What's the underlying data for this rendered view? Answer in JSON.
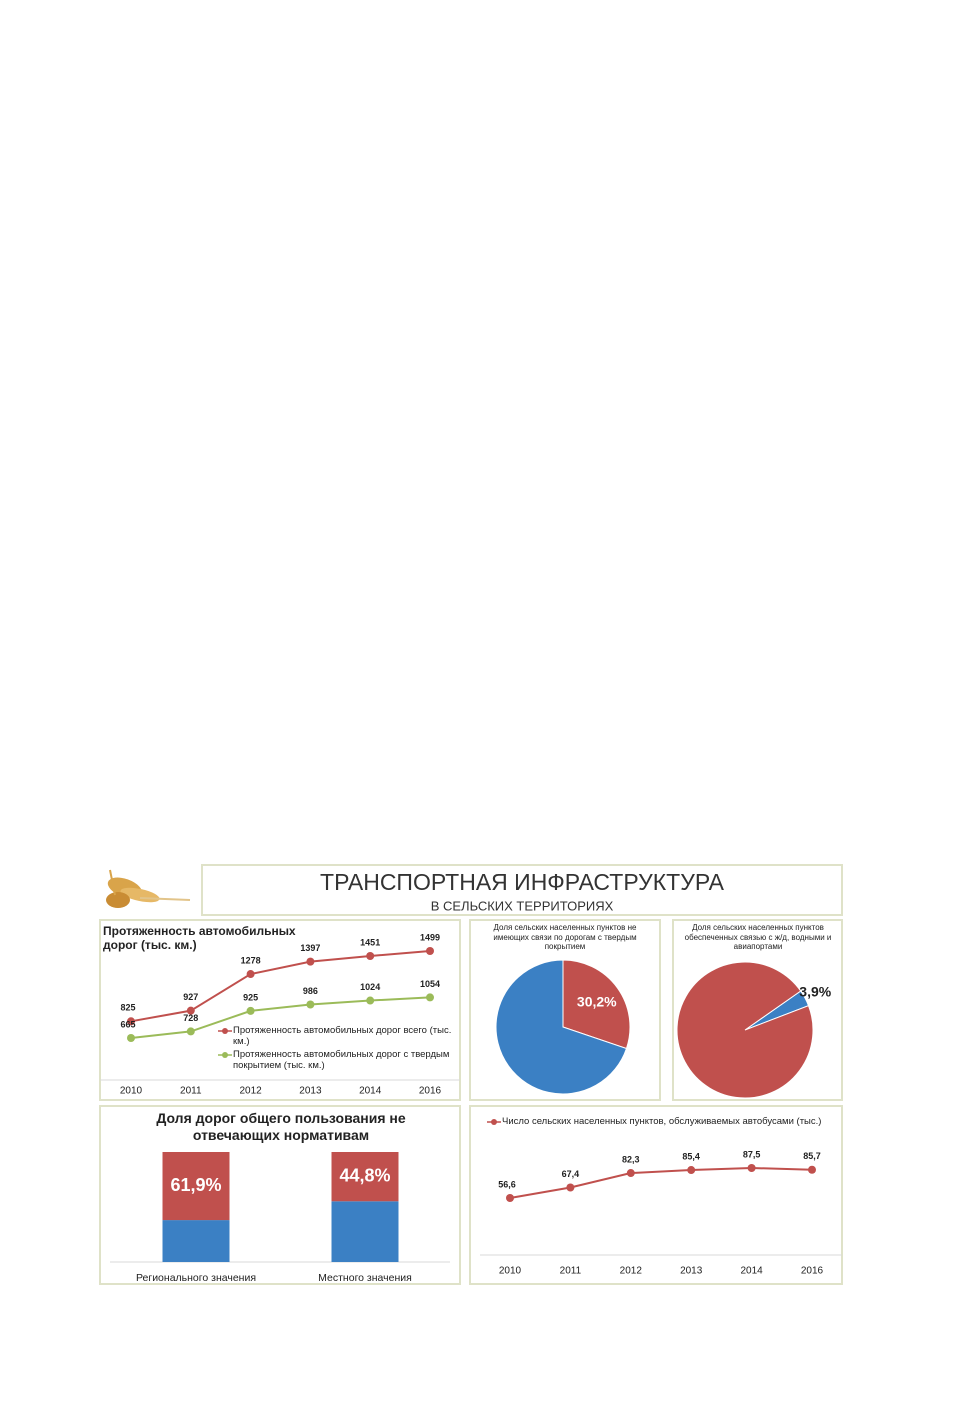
{
  "header": {
    "title": "ТРАНСПОРТНАЯ ИНФРАСТРУКТУРА",
    "subtitle": "В СЕЛЬСКИХ ТЕРРИТОРИЯХ"
  },
  "chart_data": [
    {
      "type": "line",
      "title": "Протяженность автомобильных дорог (тыс. км.)",
      "categories": [
        "2010",
        "2011",
        "2012",
        "2013",
        "2014",
        "2016"
      ],
      "series": [
        {
          "name": "Протяженность автомобильных дорог всего (тыс. км.)",
          "color": "#c0504d",
          "values": [
            825,
            927,
            1278,
            1397,
            1451,
            1499
          ]
        },
        {
          "name": "Протяженность автомобильных дорог с твердым покрытием (тыс. км.)",
          "color": "#9bbb59",
          "values": [
            665,
            728,
            925,
            986,
            1024,
            1054
          ]
        }
      ]
    },
    {
      "type": "pie",
      "title": "Доля сельских населенных пунктов не имеющих связи по дорогам с твердым покрытием",
      "values": [
        30.2,
        69.8
      ],
      "value_labels": [
        "30,2%",
        null
      ],
      "colors": [
        "#c0504d",
        "#3b80c4"
      ]
    },
    {
      "type": "pie",
      "title": "Доля сельских населенных пунктов обеспеченных связью с ж/д, водными и авиапортами",
      "values": [
        3.9,
        96.1
      ],
      "value_labels": [
        "3,9%",
        null
      ],
      "colors": [
        "#3b80c4",
        "#c0504d"
      ]
    },
    {
      "type": "bar",
      "stacked": true,
      "title": "Доля дорог общего пользования не отвечающих нормативам",
      "categories": [
        "Регионального значения",
        "Местного значения"
      ],
      "series": [
        {
          "color": "#3b80c4",
          "values": [
            38.1,
            55.2
          ]
        },
        {
          "color": "#c0504d",
          "values": [
            61.9,
            44.8
          ],
          "value_labels": [
            "61,9%",
            "44,8%"
          ]
        }
      ]
    },
    {
      "type": "line",
      "categories": [
        "2010",
        "2011",
        "2012",
        "2013",
        "2014",
        "2016"
      ],
      "series": [
        {
          "name": "Число сельских населенных пунктов, обслуживаемых автобусами (тыс.)",
          "color": "#c0504d",
          "values": [
            56.6,
            67.4,
            82.3,
            85.4,
            87.5,
            85.7
          ],
          "value_labels": [
            "56,6",
            "67,4",
            "82,3",
            "85,4",
            "87,5",
            "85,7"
          ]
        }
      ]
    }
  ]
}
